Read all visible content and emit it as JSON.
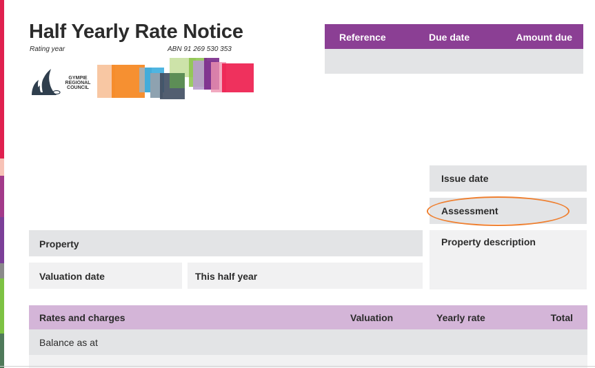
{
  "notice": {
    "title": "Half Yearly Rate Notice",
    "rating_year_label": "Rating year",
    "abn": "ABN 91 269 530 353"
  },
  "logo": {
    "icon": "gympie-regional-council-logo",
    "line1": "GYMPIE",
    "line2": "REGIONAL",
    "line3": "COUNCIL"
  },
  "summary_header": {
    "reference": "Reference",
    "due_date": "Due date",
    "amount_due": "Amount due"
  },
  "details": {
    "issue_date": "Issue date",
    "assessment": "Assessment",
    "property_description": "Property description",
    "property": "Property",
    "valuation_date": "Valuation date",
    "this_half_year": "This half year"
  },
  "rates_table": {
    "columns": [
      "Rates and charges",
      "Valuation",
      "Yearly rate",
      "Total"
    ],
    "rows": [
      "Balance as at"
    ]
  },
  "colors": {
    "header_purple": "#8b3f94",
    "table_header_lilac": "#d4b5d8",
    "highlight_orange": "#ef7f2f",
    "panel_grey": "#e3e4e6"
  }
}
